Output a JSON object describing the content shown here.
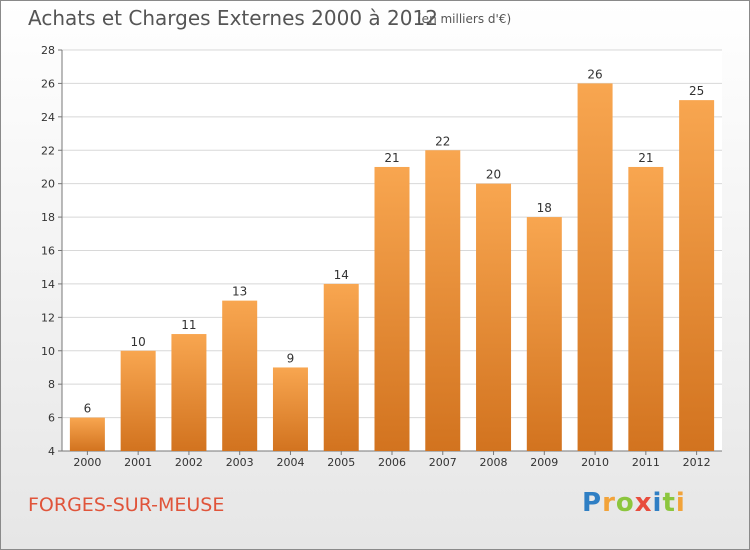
{
  "header": {
    "title": "Achats et Charges Externes 2000 à 2012",
    "unit": "(en milliers d'€)"
  },
  "footer": {
    "commune": "FORGES-SUR-MEUSE",
    "logo_letters": [
      {
        "char": "P",
        "color": "#2f7fc4"
      },
      {
        "char": "r",
        "color": "#f2a33a"
      },
      {
        "char": "o",
        "color": "#8cc63e"
      },
      {
        "char": "x",
        "color": "#e84c3d"
      },
      {
        "char": "i",
        "color": "#2f7fc4"
      },
      {
        "char": "t",
        "color": "#8cc63e"
      },
      {
        "char": "i",
        "color": "#f2a33a"
      }
    ]
  },
  "colors": {
    "bar_top": "#f8a650",
    "bar_bottom": "#d2731f",
    "grid": "#d8d8d8",
    "axis": "#777777",
    "text": "#333333"
  },
  "chart_data": {
    "type": "bar",
    "categories": [
      "2000",
      "2001",
      "2002",
      "2003",
      "2004",
      "2005",
      "2006",
      "2007",
      "2008",
      "2009",
      "2010",
      "2011",
      "2012"
    ],
    "values": [
      6,
      10,
      11,
      13,
      9,
      14,
      21,
      22,
      20,
      18,
      26,
      21,
      25
    ],
    "title": "Achats et Charges Externes 2000 à 2012",
    "subtitle": "(en milliers d'€)",
    "ylim": [
      4,
      28
    ],
    "yticks": [
      4,
      6,
      8,
      10,
      12,
      14,
      16,
      18,
      20,
      22,
      24,
      26,
      28
    ],
    "grid": true,
    "legend": "none"
  }
}
